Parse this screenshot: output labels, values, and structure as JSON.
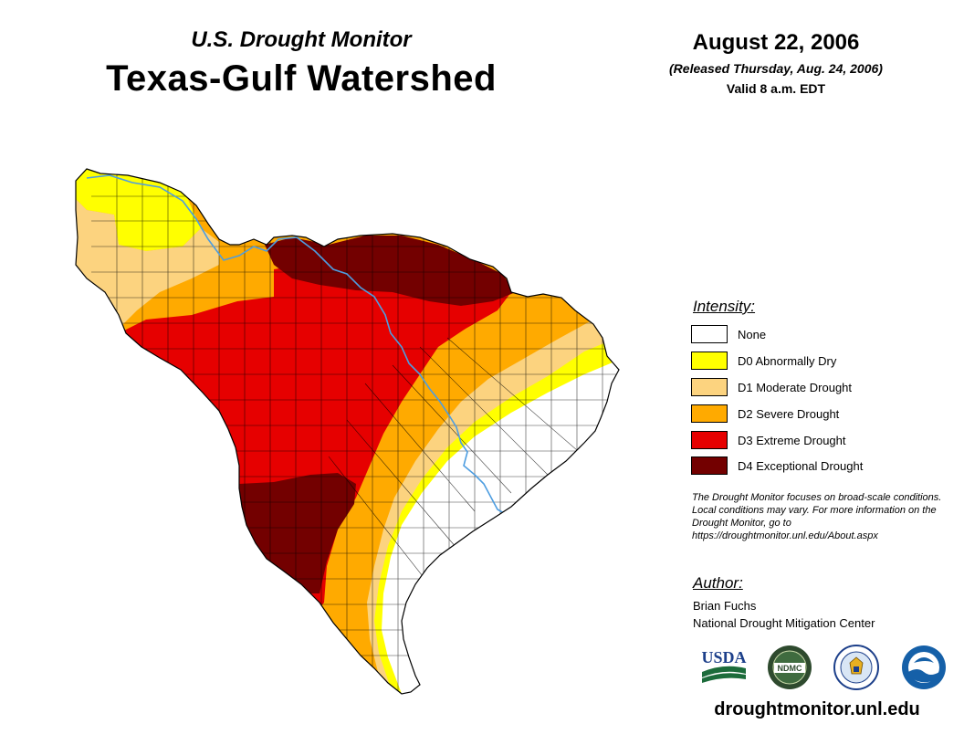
{
  "header": {
    "subtitle": "U.S. Drought Monitor",
    "title": "Texas-Gulf Watershed",
    "date": "August 22, 2006",
    "released": "(Released Thursday, Aug. 24, 2006)",
    "valid": "Valid 8 a.m. EDT"
  },
  "legend": {
    "heading": "Intensity:",
    "items": [
      {
        "label": "None",
        "color": "#ffffff"
      },
      {
        "label": "D0 Abnormally Dry",
        "color": "#ffff00"
      },
      {
        "label": "D1 Moderate Drought",
        "color": "#fcd37f"
      },
      {
        "label": "D2 Severe Drought",
        "color": "#ffaa00"
      },
      {
        "label": "D3 Extreme Drought",
        "color": "#e60000"
      },
      {
        "label": "D4 Exceptional Drought",
        "color": "#730000"
      }
    ]
  },
  "disclaimer": "The Drought Monitor focuses on broad-scale conditions. Local conditions may vary. For more information on the Drought Monitor, go to https://droughtmonitor.unl.edu/About.aspx",
  "author": {
    "heading": "Author:",
    "name": "Brian Fuchs",
    "organization": "National Drought Mitigation Center"
  },
  "logos": {
    "usda": "USDA",
    "ndmc": "NDMC",
    "doc": "Department of Commerce seal",
    "noaa": "NOAA"
  },
  "website": "droughtmonitor.unl.edu",
  "map_colors": {
    "none": "#ffffff",
    "d0": "#ffff00",
    "d1": "#fcd37f",
    "d2": "#ffaa00",
    "d3": "#e60000",
    "d4": "#730000",
    "river": "#4d9de0",
    "boundary": "#000000"
  }
}
